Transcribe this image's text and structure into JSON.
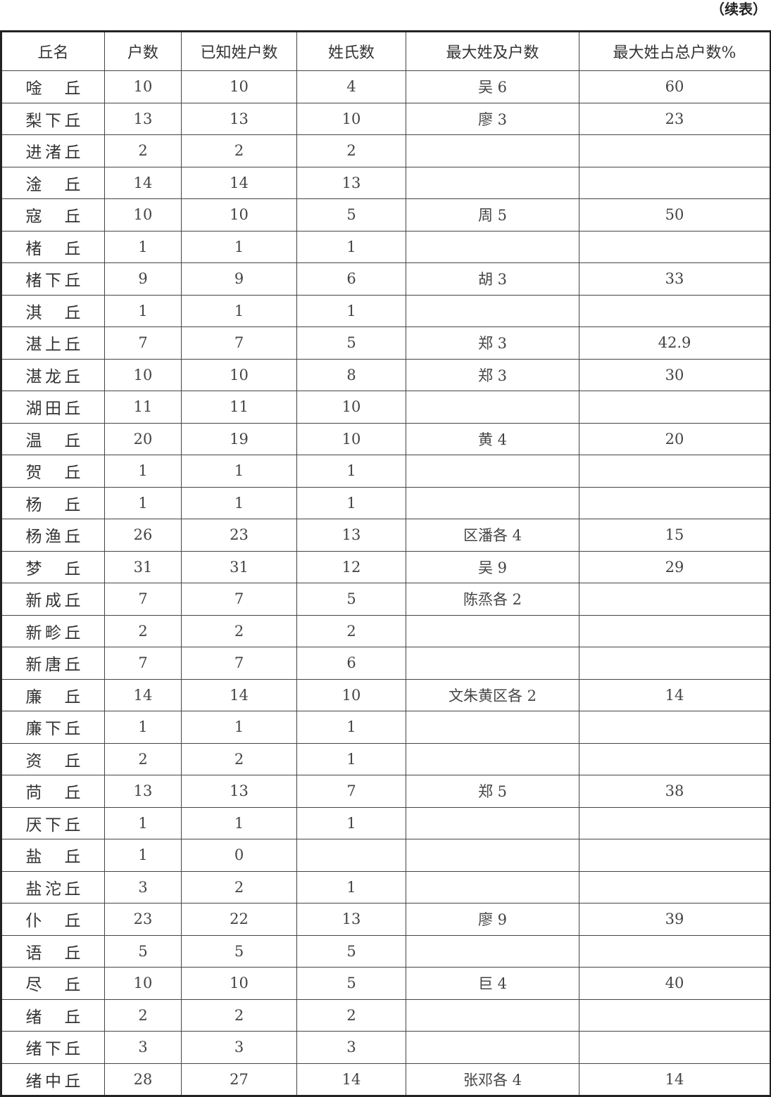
{
  "continued_label": "（续表）",
  "headers": [
    "丘名",
    "户数",
    "已知姓户数",
    "姓氏数",
    "最大姓及户数",
    "最大姓占总户数%"
  ],
  "rows": [
    [
      "唫丘",
      "10",
      "10",
      "4",
      "吴 6",
      "60"
    ],
    [
      "梨下丘",
      "13",
      "13",
      "10",
      "廖 3",
      "23"
    ],
    [
      "进渚丘",
      "2",
      "2",
      "2",
      "",
      ""
    ],
    [
      "淦丘",
      "14",
      "14",
      "13",
      "",
      ""
    ],
    [
      "寇丘",
      "10",
      "10",
      "5",
      "周 5",
      "50"
    ],
    [
      "楮丘",
      "1",
      "1",
      "1",
      "",
      ""
    ],
    [
      "楮下丘",
      "9",
      "9",
      "6",
      "胡 3",
      "33"
    ],
    [
      "淇丘",
      "1",
      "1",
      "1",
      "",
      ""
    ],
    [
      "湛上丘",
      "7",
      "7",
      "5",
      "郑 3",
      "42.9"
    ],
    [
      "湛龙丘",
      "10",
      "10",
      "8",
      "郑 3",
      "30"
    ],
    [
      "湖田丘",
      "11",
      "11",
      "10",
      "",
      ""
    ],
    [
      "温丘",
      "20",
      "19",
      "10",
      "黄 4",
      "20"
    ],
    [
      "贺丘",
      "1",
      "1",
      "1",
      "",
      ""
    ],
    [
      "杨丘",
      "1",
      "1",
      "1",
      "",
      ""
    ],
    [
      "杨渔丘",
      "26",
      "23",
      "13",
      "区潘各 4",
      "15"
    ],
    [
      "梦丘",
      "31",
      "31",
      "12",
      "吴 9",
      "29"
    ],
    [
      "新成丘",
      "7",
      "7",
      "5",
      "陈烝各 2",
      ""
    ],
    [
      "新畛丘",
      "2",
      "2",
      "2",
      "",
      ""
    ],
    [
      "新唐丘",
      "7",
      "7",
      "6",
      "",
      ""
    ],
    [
      "廉丘",
      "14",
      "14",
      "10",
      "文朱黄区各 2",
      "14"
    ],
    [
      "廉下丘",
      "1",
      "1",
      "1",
      "",
      ""
    ],
    [
      "资丘",
      "2",
      "2",
      "1",
      "",
      ""
    ],
    [
      "苘丘",
      "13",
      "13",
      "7",
      "郑 5",
      "38"
    ],
    [
      "厌下丘",
      "1",
      "1",
      "1",
      "",
      ""
    ],
    [
      "盐丘",
      "1",
      "0",
      "",
      "",
      ""
    ],
    [
      "盐沱丘",
      "3",
      "2",
      "1",
      "",
      ""
    ],
    [
      "仆丘",
      "23",
      "22",
      "13",
      "廖 9",
      "39"
    ],
    [
      "语丘",
      "5",
      "5",
      "5",
      "",
      ""
    ],
    [
      "尽丘",
      "10",
      "10",
      "5",
      "巨 4",
      "40"
    ],
    [
      "绪丘",
      "2",
      "2",
      "2",
      "",
      ""
    ],
    [
      "绪下丘",
      "3",
      "3",
      "3",
      "",
      ""
    ],
    [
      "绪中丘",
      "28",
      "27",
      "14",
      "张邓各 4",
      "14"
    ]
  ]
}
